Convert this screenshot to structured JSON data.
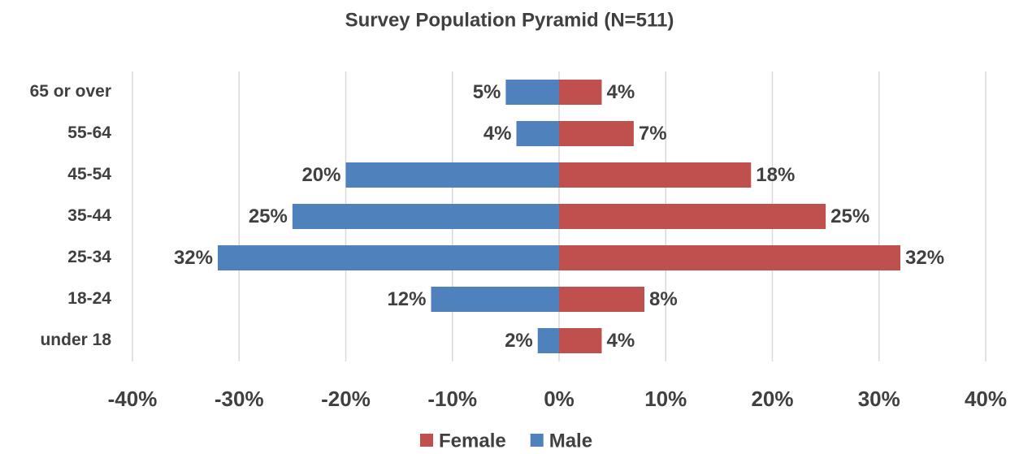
{
  "chart_data": {
    "type": "bar",
    "orientation": "horizontal",
    "stacked": true,
    "title": "Survey Population Pyramid (N=511)",
    "categories": [
      "65 or over",
      "55-64",
      "45-54",
      "35-44",
      "25-34",
      "18-24",
      "under 18"
    ],
    "series": [
      {
        "name": "Female",
        "color": "#c0504d",
        "values": [
          4,
          7,
          18,
          25,
          32,
          8,
          4
        ],
        "value_labels": [
          "4%",
          "7%",
          "18%",
          "25%",
          "32%",
          "8%",
          "4%"
        ]
      },
      {
        "name": "Male",
        "color": "#4f81bd",
        "values": [
          -5,
          -4,
          -20,
          -25,
          -32,
          -12,
          -2
        ],
        "value_labels": [
          "5%",
          "4%",
          "20%",
          "25%",
          "32%",
          "12%",
          "2%"
        ]
      }
    ],
    "xlim": [
      -40,
      40
    ],
    "xticks": [
      {
        "value": -40,
        "label": "-40%"
      },
      {
        "value": -30,
        "label": "-30%"
      },
      {
        "value": -20,
        "label": "-20%"
      },
      {
        "value": -10,
        "label": "-10%"
      },
      {
        "value": 0,
        "label": "0%"
      },
      {
        "value": 10,
        "label": "10%"
      },
      {
        "value": 20,
        "label": "20%"
      },
      {
        "value": 30,
        "label": "30%"
      },
      {
        "value": 40,
        "label": "40%"
      }
    ],
    "grid": true,
    "legend": "bottom"
  }
}
